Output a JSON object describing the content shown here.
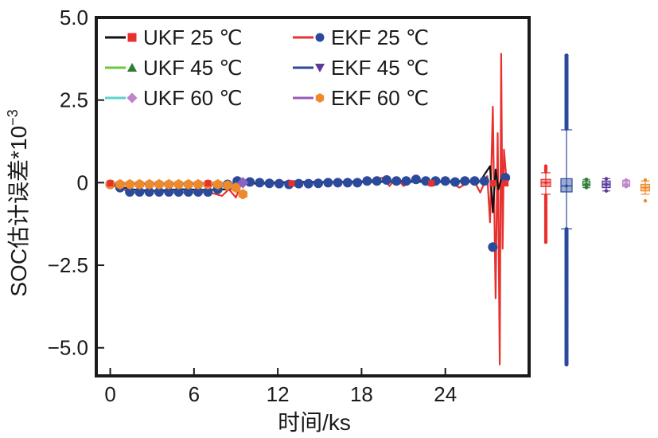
{
  "chart_data": {
    "type": "line",
    "xlabel": "时间/ks",
    "ylabel": "SOC估计误差*10",
    "ylabel_exponent": "−3",
    "xlim": [
      -1,
      30
    ],
    "ylim": [
      -5.85,
      5.0
    ],
    "xticks": [
      0,
      6,
      12,
      18,
      24
    ],
    "xtick_labels": [
      "0",
      "6",
      "12",
      "18",
      "24"
    ],
    "yticks": [
      5.0,
      2.5,
      0,
      -2.5,
      -5.0
    ],
    "ytick_labels": [
      "5.0",
      "2.5",
      "0",
      "−2.5",
      "−5.0"
    ],
    "legend_position": "top-left",
    "legend_columns": 2,
    "series": [
      {
        "name": "UKF 25 ℃",
        "color": "#111111",
        "marker": "square",
        "x": [
          0,
          1.5,
          3,
          5,
          7,
          8.5,
          9.5,
          10.5,
          13,
          16,
          19,
          21,
          23,
          25,
          26.5,
          27.2,
          27.4,
          27.6,
          27.8,
          28.0,
          28.3
        ],
        "y": [
          -0.05,
          -0.2,
          -0.25,
          -0.2,
          -0.22,
          -0.2,
          -0.05,
          -0.02,
          0.02,
          0.02,
          0.03,
          0.05,
          0.03,
          0.05,
          0.05,
          0.5,
          -0.9,
          0.4,
          -0.2,
          0.1,
          0.15
        ]
      },
      {
        "name": "EKF 25 ℃",
        "color": "#e8312f",
        "marker": "circle-blue",
        "x": [
          0,
          1.5,
          3,
          5,
          7,
          8,
          8.5,
          9,
          9.5,
          10.5,
          13,
          16,
          18.5,
          19.5,
          20,
          20.5,
          21,
          22,
          23,
          24,
          25,
          26,
          26.5,
          27,
          27.2,
          27.4,
          27.6,
          27.75,
          27.9,
          28.0,
          28.1,
          28.2,
          28.35
        ],
        "y": [
          -0.05,
          -0.3,
          -0.25,
          -0.3,
          -0.28,
          -0.4,
          -0.2,
          -0.45,
          0.1,
          -0.05,
          0.02,
          0.02,
          0.05,
          0.15,
          -0.1,
          0.15,
          -0.1,
          0.12,
          -0.1,
          0.1,
          -0.15,
          0.1,
          -0.3,
          0.2,
          -1.2,
          2.3,
          -3.5,
          1.5,
          -5.5,
          3.9,
          -2.0,
          1.0,
          0.25
        ]
      },
      {
        "name": "UKF 45 ℃",
        "color": "#6ec63b",
        "marker": "triangle-up",
        "x": [
          0,
          3,
          6,
          9,
          12,
          18,
          24,
          27
        ],
        "y": [
          -0.02,
          -0.03,
          -0.02,
          -0.01,
          0.01,
          0.01,
          0.02,
          0.01
        ]
      },
      {
        "name": "EKF 45 ℃",
        "color": "#2b4a9c",
        "marker": "triangle-down",
        "x": [
          0,
          3,
          6,
          9,
          12,
          18,
          24,
          27
        ],
        "y": [
          -0.03,
          -0.05,
          -0.04,
          -0.02,
          0.01,
          0.02,
          0.02,
          0.01
        ]
      },
      {
        "name": "UKF 60 ℃",
        "color": "#5ed1cf",
        "marker": "diamond",
        "x": [
          0,
          3,
          6,
          9,
          12,
          18,
          24,
          27
        ],
        "y": [
          -0.01,
          -0.02,
          -0.01,
          0.0,
          0.01,
          0.01,
          0.01,
          0.01
        ]
      },
      {
        "name": "EKF 60 ℃",
        "color": "#9b59b6",
        "marker": "hexagon",
        "x": [
          0,
          1,
          2,
          3,
          4,
          5,
          6,
          7,
          8,
          9,
          9.5
        ],
        "y": [
          -0.05,
          -0.05,
          -0.04,
          -0.05,
          -0.05,
          -0.05,
          -0.04,
          -0.05,
          -0.1,
          -0.2,
          -0.35
        ]
      }
    ],
    "blue_marker_points": {
      "x": [
        0,
        0.7,
        1.4,
        2.1,
        2.8,
        3.5,
        4.2,
        4.9,
        5.6,
        6.3,
        7.0,
        7.7,
        8.4,
        9.1,
        10.0,
        10.7,
        11.4,
        12.1,
        12.8,
        13.5,
        14.2,
        14.9,
        15.6,
        16.3,
        17.0,
        17.7,
        18.4,
        19.1,
        19.8,
        20.5,
        21.2,
        21.9,
        22.6,
        23.3,
        24.0,
        24.7,
        25.4,
        26.1,
        26.8,
        27.4,
        28.3
      ],
      "y": [
        -0.05,
        -0.15,
        -0.28,
        -0.28,
        -0.28,
        -0.28,
        -0.28,
        -0.28,
        -0.28,
        -0.28,
        -0.28,
        -0.2,
        -0.05,
        0.05,
        0.02,
        0.0,
        -0.02,
        -0.03,
        -0.05,
        -0.03,
        -0.03,
        -0.02,
        0.0,
        0.0,
        0.0,
        0.0,
        0.05,
        0.05,
        0.08,
        0.05,
        0.05,
        0.1,
        0.05,
        0.05,
        0.05,
        0.02,
        0.05,
        0.05,
        0.05,
        -1.95,
        0.15
      ]
    },
    "orange_marker_points": {
      "x": [
        0,
        0.7,
        1.4,
        2.1,
        2.8,
        3.5,
        4.2,
        4.9,
        5.6,
        6.3,
        7.0,
        7.7,
        8.4,
        9.0,
        9.5
      ],
      "y": [
        -0.05,
        -0.05,
        -0.05,
        -0.05,
        -0.05,
        -0.05,
        -0.05,
        -0.05,
        -0.05,
        -0.05,
        -0.05,
        -0.05,
        -0.08,
        -0.15,
        -0.35
      ]
    },
    "purple_marker_points": {
      "x": [
        9.5
      ],
      "y": [
        0.0
      ]
    },
    "boxplots": [
      {
        "series": "UKF 25 ℃",
        "color": "#e8312f",
        "median": 0.0,
        "q1": -0.12,
        "q3": 0.1,
        "whisker_low": -0.35,
        "whisker_high": 0.3,
        "outlier_low": -1.8,
        "outlier_high": 0.5
      },
      {
        "series": "EKF 25 ℃",
        "color": "#2b4a9c",
        "median": -0.1,
        "q1": -0.28,
        "q3": 0.12,
        "whisker_low": -1.4,
        "whisker_high": 1.6,
        "outlier_low": -5.5,
        "outlier_high": 3.85
      },
      {
        "series": "UKF 45 ℃",
        "color": "#2e7d32",
        "median": -0.05,
        "q1": -0.1,
        "q3": 0.05,
        "whisker_low": -0.15,
        "whisker_high": 0.1,
        "outlier_low": -0.15,
        "outlier_high": 0.1
      },
      {
        "series": "EKF 45 ℃",
        "color": "#5b3a9c",
        "median": -0.05,
        "q1": -0.15,
        "q3": 0.05,
        "whisker_low": -0.25,
        "whisker_high": 0.12,
        "outlier_low": -0.25,
        "outlier_high": 0.12
      },
      {
        "series": "UKF 60 ℃",
        "color": "#c084c9",
        "median": -0.05,
        "q1": -0.1,
        "q3": 0.05,
        "whisker_low": -0.12,
        "whisker_high": 0.08,
        "outlier_low": -0.12,
        "outlier_high": 0.08
      },
      {
        "series": "EKF 60 ℃",
        "color": "#ef8a2c",
        "median": -0.15,
        "q1": -0.25,
        "q3": -0.05,
        "whisker_low": -0.35,
        "whisker_high": 0.05,
        "outlier_low": -0.55,
        "outlier_high": 0.08
      }
    ]
  }
}
